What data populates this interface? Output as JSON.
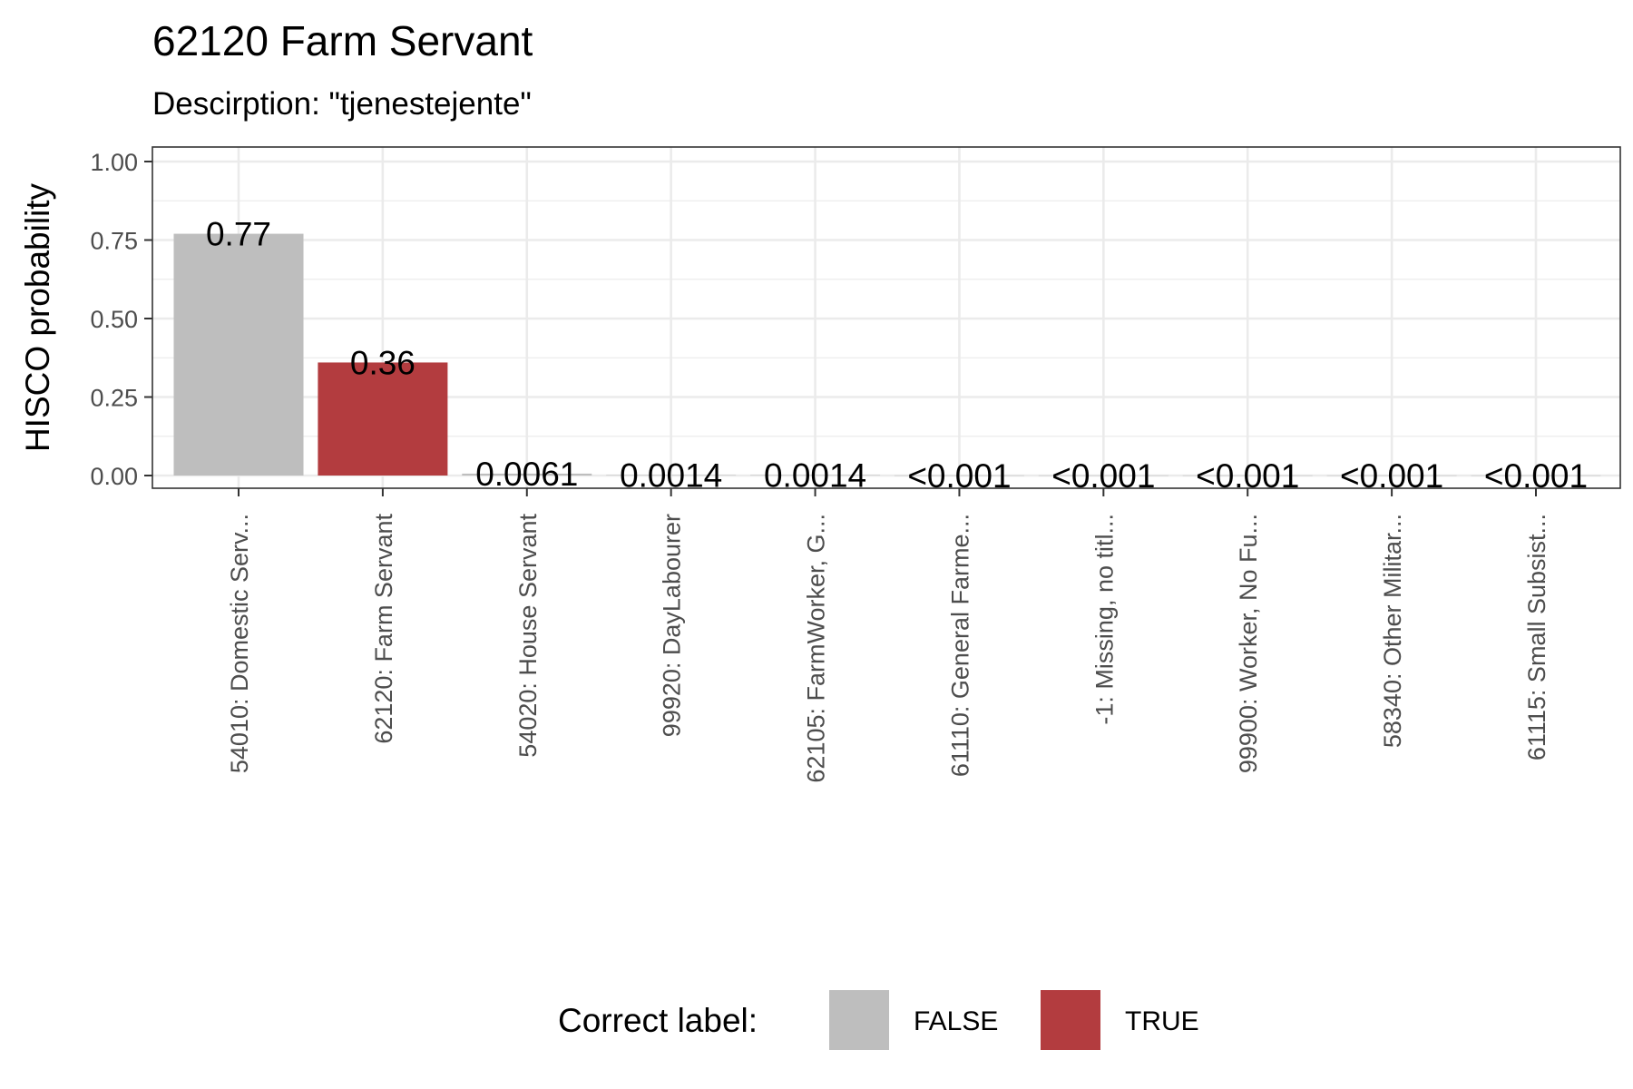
{
  "chart_data": {
    "type": "bar",
    "title": "62120 Farm Servant",
    "subtitle": "Descirption: \"tjenestejente\"",
    "ylabel": "HISCO probability",
    "xlabel": "",
    "ylim": [
      0,
      1
    ],
    "yticks": [
      "0.00",
      "0.25",
      "0.50",
      "0.75",
      "1.00"
    ],
    "grid": true,
    "legend_position": "bottom",
    "legend": {
      "title": "Correct label:",
      "items": [
        {
          "label": "FALSE",
          "color": "#bebebe"
        },
        {
          "label": "TRUE",
          "color": "#b33c3f"
        }
      ]
    },
    "categories": [
      "54010: Domestic Serv...",
      "62120: Farm Servant",
      "54020: House Servant",
      "99920: DayLabourer",
      "62105: FarmWorker, G...",
      "61110: General Farme...",
      "-1: Missing, no titl...",
      "99900: Worker, No Fu...",
      "58340: Other Militar...",
      "61115: Small Subsist..."
    ],
    "values": [
      0.77,
      0.36,
      0.0061,
      0.0014,
      0.0014,
      0.0005,
      0.0005,
      0.0005,
      0.0005,
      0.0005
    ],
    "value_labels": [
      "0.77",
      "0.36",
      "0.0061",
      "0.0014",
      "0.0014",
      "<0.001",
      "<0.001",
      "<0.001",
      "<0.001",
      "<0.001"
    ],
    "correct": [
      false,
      true,
      false,
      false,
      false,
      false,
      false,
      false,
      false,
      false
    ]
  }
}
